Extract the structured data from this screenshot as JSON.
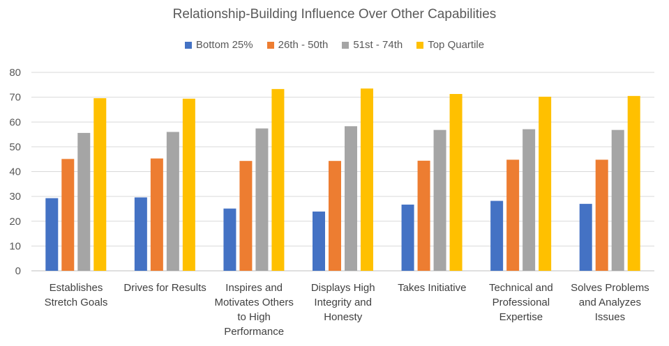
{
  "chart_data": {
    "type": "bar",
    "title": "Relationship-Building  Influence Over Other Capabilities",
    "categories": [
      "Establishes Stretch Goals",
      "Drives for Results",
      "Inspires and Motivates Others to High Performance",
      "Displays High Integrity and Honesty",
      "Takes Initiative",
      "Technical and Professional Expertise",
      "Solves Problems and Analyzes Issues"
    ],
    "series": [
      {
        "name": "Bottom 25%",
        "color": "#4472C4",
        "values": [
          29.3,
          29.6,
          25.1,
          23.9,
          26.7,
          28.2,
          27.0
        ]
      },
      {
        "name": "26th - 50th",
        "color": "#ED7D31",
        "values": [
          45.1,
          45.3,
          44.3,
          44.3,
          44.4,
          44.8,
          44.8
        ]
      },
      {
        "name": "51st - 74th",
        "color": "#A5A5A5",
        "values": [
          55.6,
          56.0,
          57.4,
          58.3,
          56.8,
          57.1,
          56.8
        ]
      },
      {
        "name": "Top Quartile",
        "color": "#FFC000",
        "values": [
          69.6,
          69.4,
          73.3,
          73.5,
          71.3,
          70.2,
          70.5
        ]
      }
    ],
    "yticks": [
      0,
      10,
      20,
      30,
      40,
      50,
      60,
      70,
      80
    ],
    "ylim": [
      0,
      80
    ],
    "grid": true,
    "legend_position": "top",
    "xlabel": "",
    "ylabel": ""
  }
}
